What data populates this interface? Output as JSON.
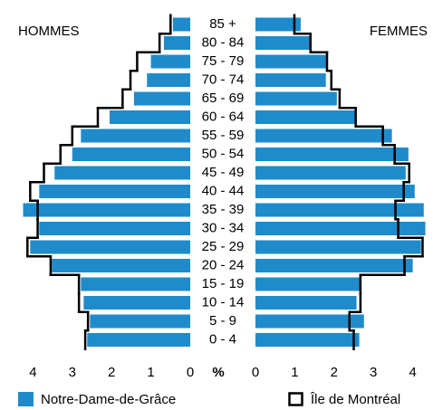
{
  "chart_data": {
    "type": "pyramid",
    "left_title": "HOMMES",
    "right_title": "FEMMES",
    "axis_label": "%",
    "categories": [
      "0 - 4",
      "5 - 9",
      "10 - 14",
      "15 - 19",
      "20 - 24",
      "25 - 29",
      "30 - 34",
      "35 - 39",
      "40 - 44",
      "45 - 49",
      "50 - 54",
      "55 - 59",
      "60 - 64",
      "65 - 69",
      "70 - 74",
      "75 - 79",
      "80 - 84",
      "85 +"
    ],
    "xlim": [
      0,
      4.4
    ],
    "xticks": [
      0,
      1,
      2,
      3,
      4
    ],
    "series": [
      {
        "name": "Notre-Dame-de-Grâce",
        "color": "#1f8bcb",
        "style": "bar",
        "left": [
          2.62,
          2.55,
          2.71,
          2.78,
          3.52,
          4.07,
          3.84,
          4.25,
          3.84,
          3.45,
          3.0,
          2.78,
          2.05,
          1.43,
          1.1,
          1.0,
          0.67,
          0.44
        ],
        "right": [
          2.64,
          2.76,
          2.57,
          2.67,
          4.0,
          4.21,
          4.32,
          4.28,
          4.05,
          3.82,
          3.89,
          3.47,
          2.53,
          2.07,
          1.79,
          1.84,
          1.38,
          1.15
        ]
      },
      {
        "name": "Île de Montréal",
        "color": "#000000",
        "style": "step",
        "left": [
          2.67,
          2.6,
          2.83,
          2.83,
          3.55,
          4.14,
          3.88,
          3.88,
          4.07,
          3.72,
          3.3,
          3.0,
          2.35,
          1.72,
          1.52,
          1.35,
          0.78,
          0.5
        ],
        "right": [
          2.5,
          2.39,
          2.67,
          2.67,
          3.79,
          4.25,
          3.63,
          3.56,
          3.77,
          3.91,
          3.54,
          3.24,
          2.55,
          2.14,
          1.93,
          1.82,
          1.4,
          0.99
        ]
      }
    ]
  }
}
